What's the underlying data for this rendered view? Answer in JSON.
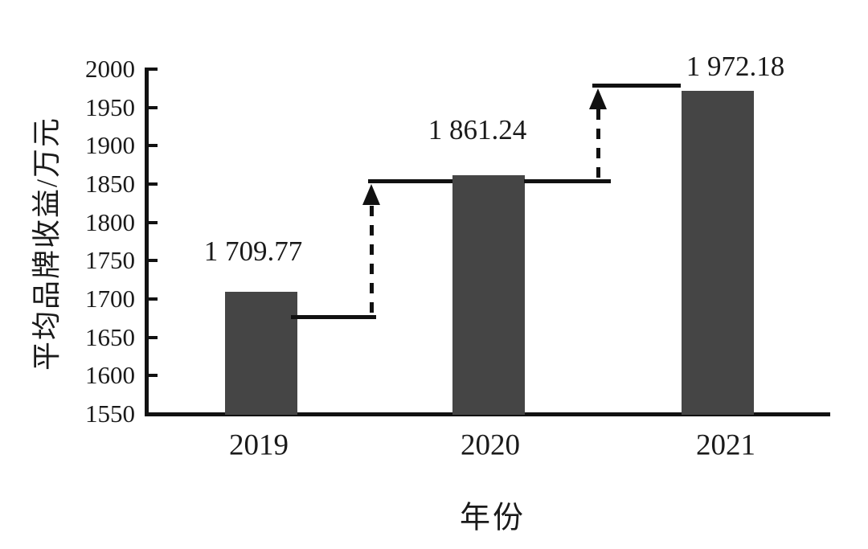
{
  "chart_data": {
    "type": "bar",
    "title": "",
    "categories": [
      "2019",
      "2020",
      "2021"
    ],
    "values": [
      1709.77,
      1861.24,
      1972.18
    ],
    "value_labels": [
      "1 709.77",
      "1 861.24",
      "1 972.18"
    ],
    "xlabel": "年份",
    "ylabel": "平均品牌收益/万元",
    "ylim": [
      1550,
      2000
    ],
    "yticks": [
      2000,
      1950,
      1900,
      1850,
      1800,
      1750,
      1700,
      1650,
      1600,
      1550
    ],
    "grid": false,
    "legend": false,
    "bar_color": "#454545",
    "axis_color": "#121212",
    "text_color": "#1a1a1a",
    "annotations": [
      {
        "type": "step-arrow",
        "from": "2019",
        "to": "2020",
        "style": "dashed vertical arrow up between bar tops"
      },
      {
        "type": "step-arrow",
        "from": "2020",
        "to": "2021",
        "style": "dashed vertical arrow up between bar tops"
      }
    ]
  }
}
